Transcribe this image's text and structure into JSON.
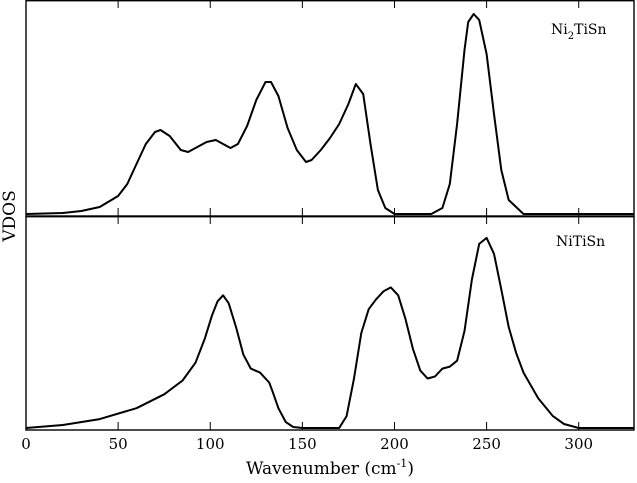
{
  "chart_data": {
    "type": "line",
    "xlabel": "Wavenumber (cm",
    "xlabel_sup": "-1",
    "xlabel_end": ")",
    "ylabel": "VDOS",
    "xlim": [
      0,
      330
    ],
    "xticks": [
      0,
      50,
      100,
      150,
      200,
      250,
      300
    ],
    "xtick_labels": [
      "0",
      "50",
      "100",
      "150",
      "200",
      "250",
      "300"
    ],
    "grid": false,
    "legend": "none",
    "panels": [
      {
        "label_main": "Ni",
        "label_sub": "2",
        "label_rest": "TiSn",
        "ylim": [
          0,
          1.0
        ],
        "x": [
          0,
          20,
          30,
          40,
          50,
          55,
          60,
          65,
          70,
          73,
          78,
          84,
          88,
          92,
          98,
          103,
          107,
          111,
          115,
          120,
          125,
          130,
          133,
          137,
          142,
          147,
          152,
          155,
          160,
          165,
          170,
          175,
          179,
          183,
          187,
          191,
          195,
          200,
          220,
          226,
          230,
          234,
          238,
          240,
          243,
          246,
          250,
          254,
          258,
          262,
          270,
          330
        ],
        "values": [
          0,
          0.005,
          0.015,
          0.035,
          0.09,
          0.15,
          0.25,
          0.35,
          0.41,
          0.42,
          0.39,
          0.32,
          0.31,
          0.33,
          0.36,
          0.37,
          0.35,
          0.33,
          0.35,
          0.44,
          0.57,
          0.66,
          0.66,
          0.59,
          0.43,
          0.32,
          0.26,
          0.27,
          0.32,
          0.38,
          0.45,
          0.55,
          0.65,
          0.6,
          0.35,
          0.12,
          0.03,
          0.0,
          0.0,
          0.03,
          0.15,
          0.45,
          0.82,
          0.96,
          1.0,
          0.97,
          0.8,
          0.5,
          0.22,
          0.07,
          0.0,
          0.0
        ]
      },
      {
        "label_main": "NiTiSn",
        "label_sub": "",
        "label_rest": "",
        "ylim": [
          0,
          1.0
        ],
        "x": [
          0,
          20,
          40,
          60,
          75,
          85,
          92,
          97,
          101,
          104,
          107,
          110,
          114,
          118,
          122,
          127,
          132,
          134,
          137,
          141,
          145,
          150,
          170,
          174,
          178,
          182,
          186,
          190,
          194,
          198,
          202,
          206,
          210,
          214,
          218,
          222,
          226,
          230,
          234,
          238,
          242,
          246,
          250,
          254,
          258,
          262,
          266,
          270,
          278,
          286,
          292,
          300,
          330
        ],
        "values": [
          0,
          0.015,
          0.045,
          0.1,
          0.17,
          0.24,
          0.33,
          0.45,
          0.57,
          0.64,
          0.67,
          0.63,
          0.51,
          0.37,
          0.3,
          0.28,
          0.23,
          0.18,
          0.1,
          0.03,
          0.005,
          0.0,
          0.0,
          0.06,
          0.25,
          0.48,
          0.6,
          0.65,
          0.69,
          0.71,
          0.67,
          0.55,
          0.4,
          0.29,
          0.25,
          0.26,
          0.3,
          0.31,
          0.34,
          0.49,
          0.75,
          0.93,
          0.96,
          0.88,
          0.7,
          0.51,
          0.38,
          0.28,
          0.15,
          0.06,
          0.02,
          0.0,
          0.0
        ]
      }
    ]
  }
}
